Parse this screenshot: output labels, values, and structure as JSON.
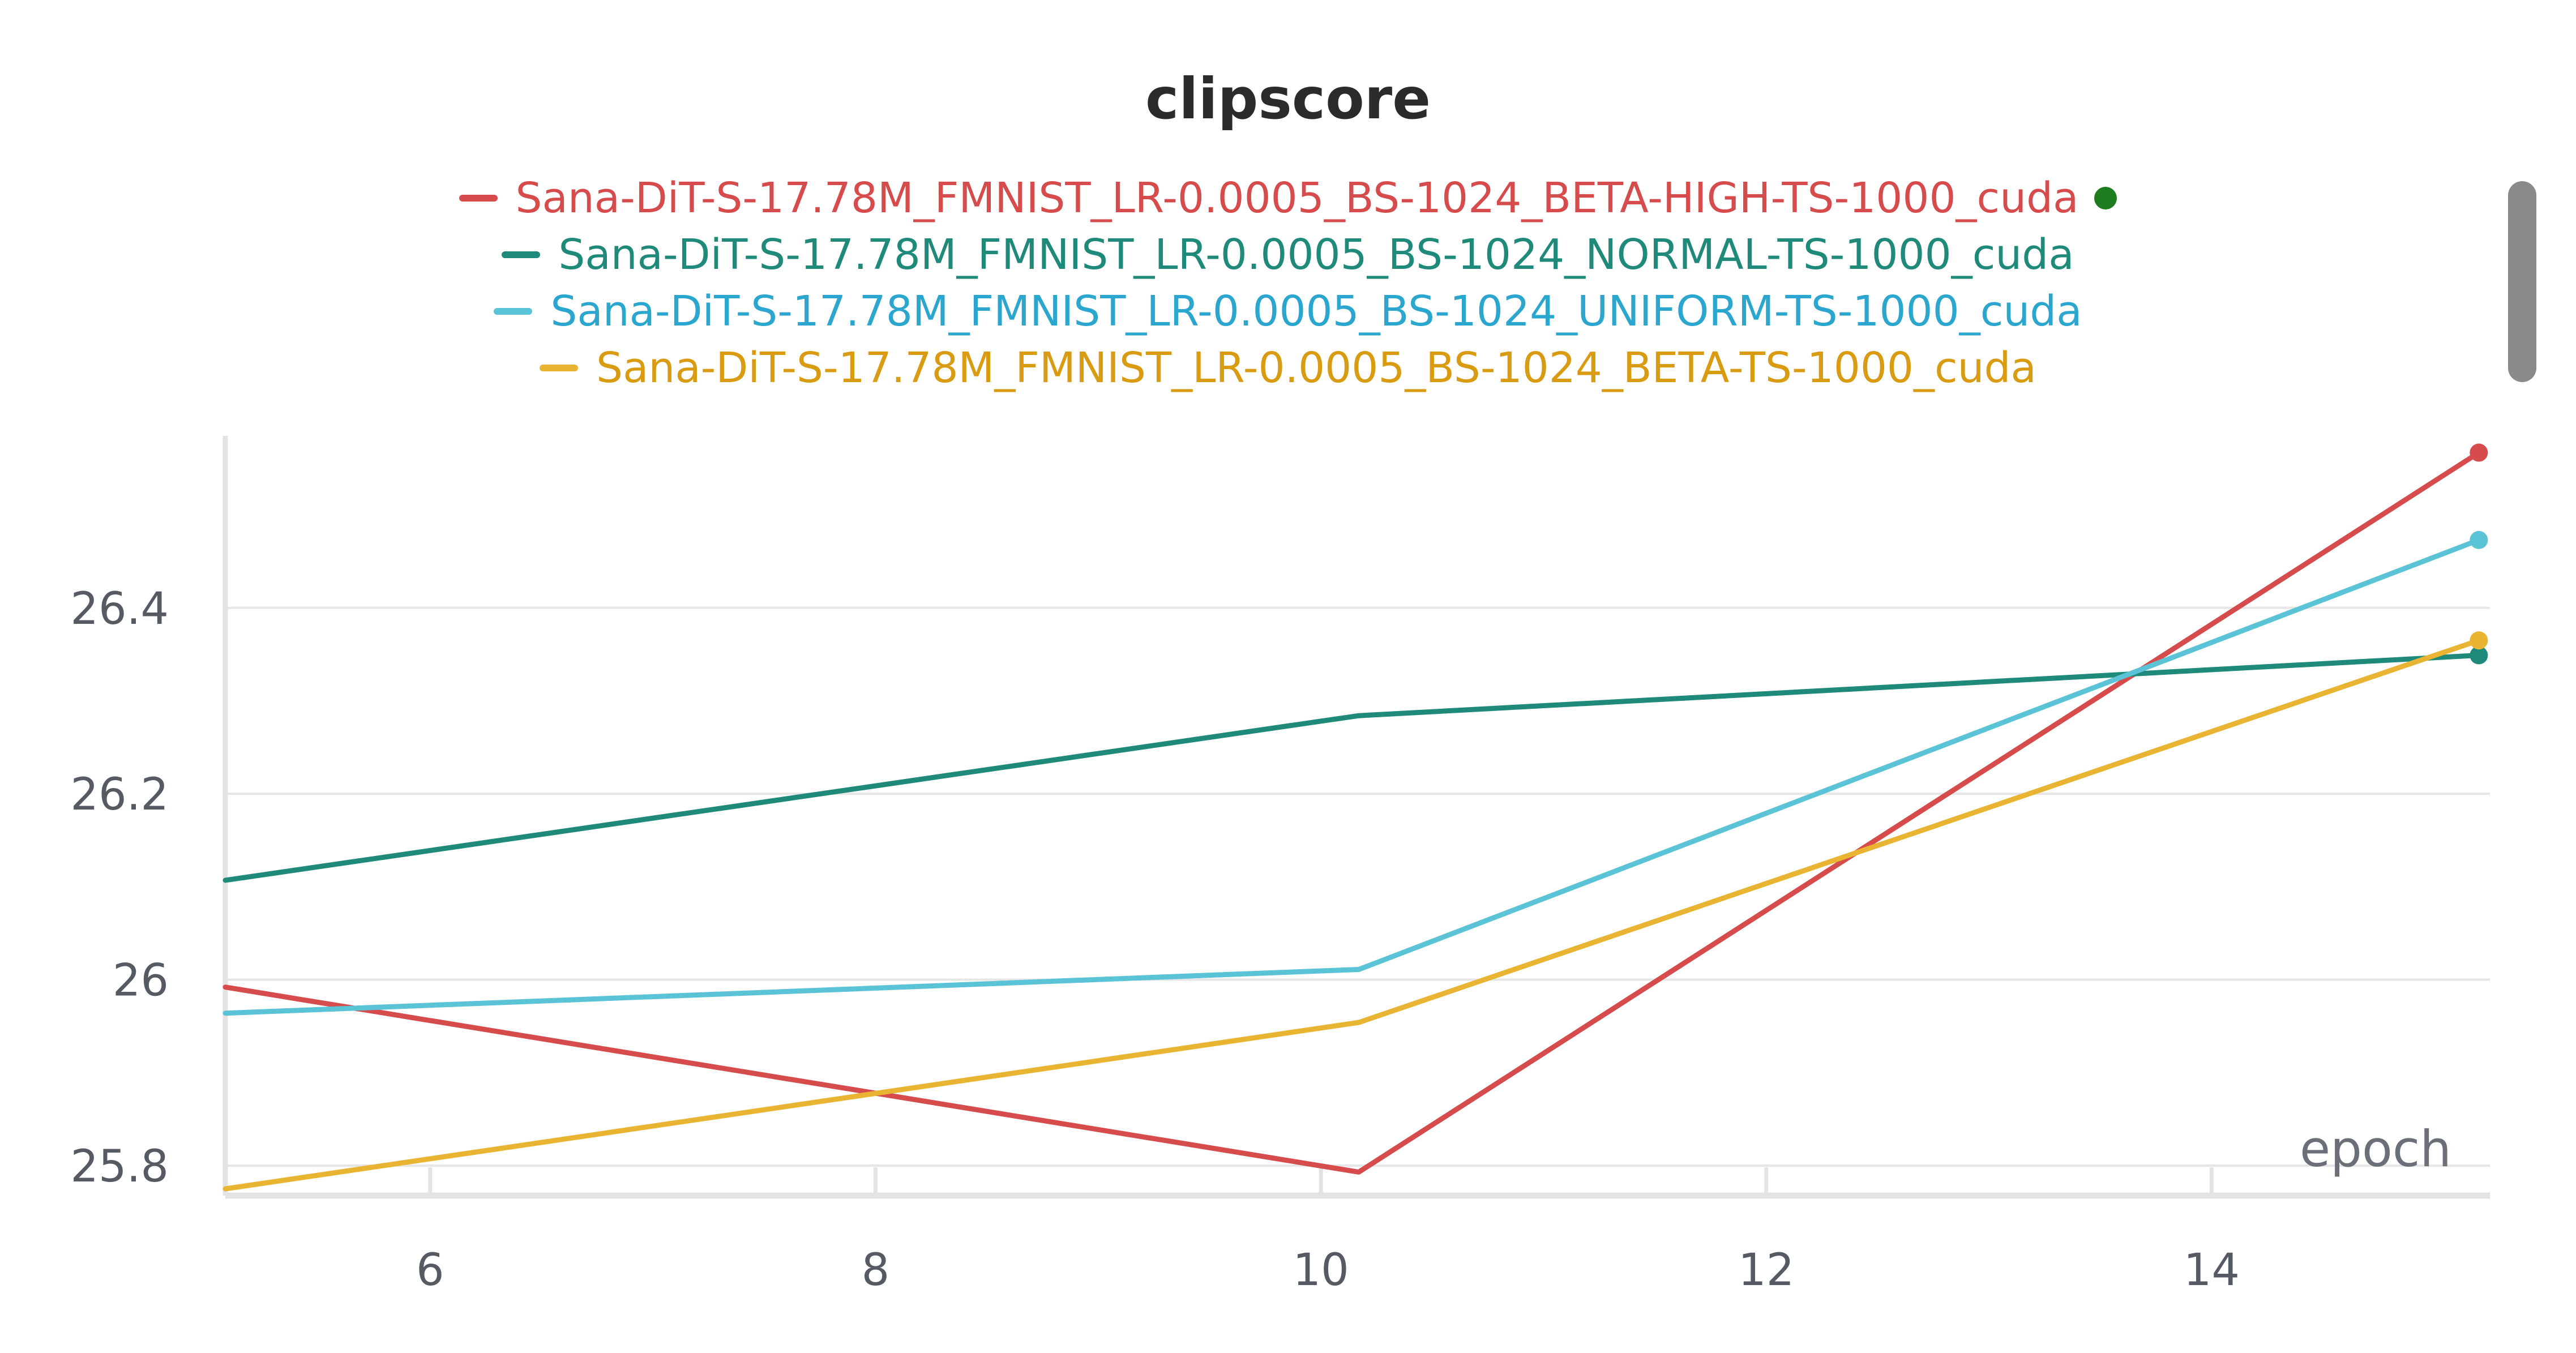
{
  "chart_data": {
    "type": "line",
    "title": "clipscore",
    "xlabel": "epoch",
    "ylabel": "",
    "xlim": [
      5.08,
      15.25
    ],
    "ylim": [
      25.775,
      26.585
    ],
    "xticks": [
      6,
      8,
      10,
      12,
      14
    ],
    "yticks": [
      25.8,
      26,
      26.2,
      26.4
    ],
    "ytick_labels": [
      "25.8",
      "26",
      "26.2",
      "26.4"
    ],
    "xtick_labels": [
      "6",
      "8",
      "10",
      "12",
      "14"
    ],
    "grid": true,
    "legend_position": "top",
    "series": [
      {
        "name": "Sana-DiT-S-17.78M_FMNIST_LR-0.0005_BS-1024_BETA-HIGH-TS-1000_cuda",
        "color": "#d64b4b",
        "x": [
          5.08,
          10.17,
          15.2
        ],
        "y": [
          25.992,
          25.793,
          26.567
        ]
      },
      {
        "name": "Sana-DiT-S-17.78M_FMNIST_LR-0.0005_BS-1024_NORMAL-TS-1000_cuda",
        "color": "#1f8a79",
        "x": [
          5.08,
          10.17,
          15.2
        ],
        "y": [
          26.107,
          26.284,
          26.349
        ]
      },
      {
        "name": "Sana-DiT-S-17.78M_FMNIST_LR-0.0005_BS-1024_UNIFORM-TS-1000_cuda",
        "color": "#5bc3d6",
        "x": [
          5.08,
          10.17,
          15.2
        ],
        "y": [
          25.964,
          26.011,
          26.473
        ]
      },
      {
        "name": "Sana-DiT-S-17.78M_FMNIST_LR-0.0005_BS-1024_BETA-TS-1000_cuda",
        "color": "#e8b431",
        "x": [
          5.08,
          10.17,
          15.2
        ],
        "y": [
          25.775,
          25.954,
          26.365
        ]
      }
    ],
    "legend_label_colors": [
      "#d64b4b",
      "#1f8a79",
      "#2ba6cf",
      "#d99b12"
    ],
    "highlight_marker_color": "#1e7d1e"
  }
}
